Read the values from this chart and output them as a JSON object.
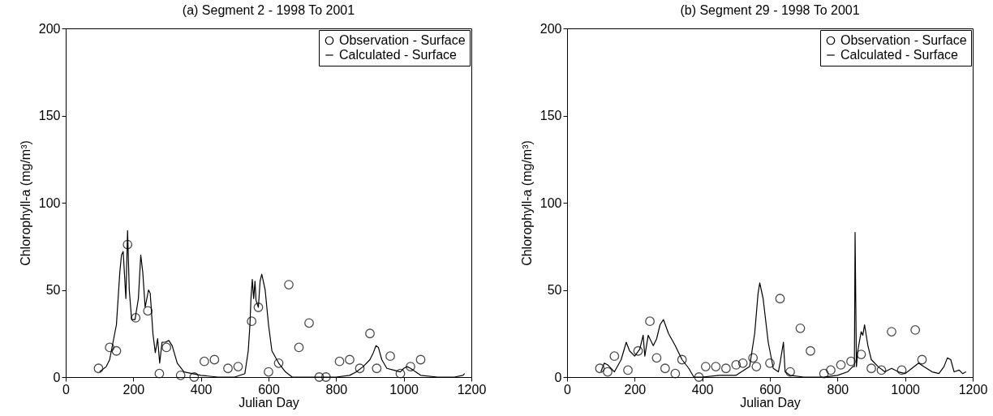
{
  "chart_data": [
    {
      "type": "line",
      "title": "(a) Segment 2 - 1998 To 2001",
      "xlabel": "Julian Day",
      "ylabel": "Chlorophyll-a (mg/m³)",
      "xlim": [
        0,
        1200
      ],
      "xticks": [
        0,
        200,
        400,
        600,
        800,
        1000,
        1200
      ],
      "ylim": [
        0,
        200
      ],
      "yticks": [
        0,
        50,
        100,
        150,
        200
      ],
      "legend": "top right",
      "grid": false,
      "series": [
        {
          "name": "Observation - Surface",
          "type": "scatter",
          "marker": "circle",
          "color": "#000000",
          "x": [
            97,
            130,
            150,
            183,
            207,
            243,
            277,
            298,
            340,
            380,
            410,
            440,
            480,
            510,
            550,
            570,
            600,
            630,
            660,
            690,
            720,
            750,
            770,
            810,
            840,
            870,
            900,
            920,
            960,
            990,
            1020,
            1050
          ],
          "values": [
            5,
            17,
            15,
            76,
            34,
            38,
            2,
            17,
            1,
            0,
            9,
            10,
            5,
            6,
            32,
            40,
            3,
            8,
            53,
            17,
            31,
            0,
            0,
            9,
            10,
            5,
            25,
            5,
            12,
            2,
            6,
            10
          ]
        },
        {
          "name": "Calculated - Surface",
          "type": "line",
          "color": "#000000",
          "x": [
            100,
            120,
            130,
            140,
            150,
            160,
            165,
            170,
            178,
            183,
            188,
            195,
            205,
            215,
            222,
            228,
            235,
            245,
            250,
            258,
            265,
            272,
            278,
            285,
            295,
            305,
            315,
            330,
            350,
            400,
            450,
            500,
            530,
            540,
            545,
            548,
            552,
            556,
            560,
            563,
            570,
            575,
            580,
            590,
            600,
            610,
            630,
            650,
            670,
            700,
            800,
            840,
            860,
            880,
            900,
            910,
            918,
            925,
            935,
            950,
            970,
            990,
            1000,
            1010,
            1020,
            1035,
            1050,
            1100,
            1150,
            1175,
            1180
          ],
          "values": [
            3,
            6,
            10,
            20,
            30,
            60,
            70,
            72,
            45,
            84,
            50,
            33,
            33,
            45,
            70,
            60,
            40,
            50,
            48,
            25,
            14,
            22,
            8,
            20,
            20,
            21,
            18,
            8,
            3,
            1,
            0,
            0,
            2,
            15,
            30,
            45,
            56,
            45,
            55,
            44,
            40,
            55,
            59,
            50,
            30,
            15,
            8,
            3,
            0,
            0,
            0,
            1,
            3,
            6,
            10,
            14,
            18,
            17,
            10,
            5,
            4,
            3,
            5,
            6,
            5,
            3,
            1,
            0,
            0,
            1,
            2
          ]
        }
      ]
    },
    {
      "type": "line",
      "title": "(b) Segment 29 - 1998 To 2001",
      "xlabel": "Julian Day",
      "ylabel": "Chlorophyll-a (mg/m³)",
      "xlim": [
        0,
        1200
      ],
      "xticks": [
        0,
        200,
        400,
        600,
        800,
        1000,
        1200
      ],
      "ylim": [
        0,
        200
      ],
      "yticks": [
        0,
        50,
        100,
        150,
        200
      ],
      "legend": "top right",
      "grid": false,
      "series": [
        {
          "name": "Observation - Surface",
          "type": "scatter",
          "marker": "circle",
          "color": "#000000",
          "x": [
            97,
            120,
            140,
            180,
            210,
            245,
            265,
            290,
            320,
            340,
            390,
            410,
            440,
            470,
            500,
            520,
            550,
            560,
            600,
            630,
            660,
            690,
            720,
            760,
            780,
            810,
            840,
            870,
            900,
            930,
            960,
            990,
            1030,
            1050
          ],
          "values": [
            5,
            3,
            12,
            4,
            15,
            32,
            11,
            5,
            2,
            10,
            0,
            6,
            6,
            5,
            7,
            8,
            11,
            6,
            8,
            45,
            3,
            28,
            15,
            2,
            4,
            7,
            9,
            13,
            5,
            4,
            26,
            4,
            27,
            10
          ]
        },
        {
          "name": "Calculated - Surface",
          "type": "line",
          "color": "#000000",
          "x": [
            100,
            110,
            120,
            130,
            140,
            160,
            175,
            185,
            200,
            215,
            225,
            230,
            240,
            255,
            265,
            275,
            285,
            300,
            320,
            340,
            360,
            375,
            400,
            450,
            500,
            540,
            555,
            565,
            570,
            580,
            595,
            610,
            625,
            630,
            640,
            645,
            660,
            700,
            760,
            800,
            830,
            845,
            850,
            852,
            856,
            860,
            870,
            875,
            880,
            890,
            900,
            920,
            940,
            960,
            980,
            1000,
            1020,
            1040,
            1055,
            1080,
            1100,
            1115,
            1125,
            1135,
            1145,
            1160,
            1170,
            1180
          ],
          "values": [
            3,
            8,
            7,
            5,
            3,
            10,
            20,
            15,
            12,
            16,
            24,
            12,
            24,
            18,
            22,
            30,
            33,
            25,
            18,
            10,
            5,
            0,
            0,
            1,
            1,
            6,
            25,
            48,
            54,
            45,
            20,
            5,
            3,
            8,
            20,
            3,
            1,
            0,
            0,
            1,
            3,
            6,
            6,
            83,
            6,
            15,
            26,
            24,
            30,
            18,
            10,
            6,
            3,
            5,
            3,
            2,
            5,
            8,
            6,
            3,
            2,
            6,
            11,
            10,
            3,
            4,
            2,
            3
          ]
        }
      ]
    }
  ]
}
